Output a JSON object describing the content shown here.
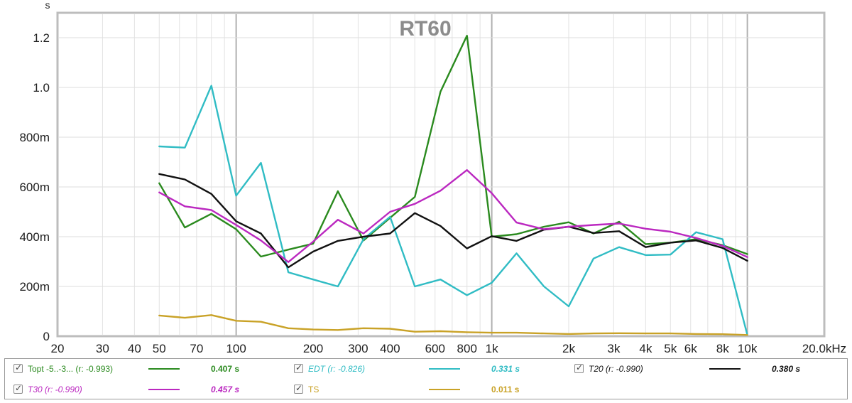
{
  "chart_data": {
    "type": "line",
    "title": "RT60",
    "y_unit": "s",
    "x_scale": "log",
    "xlim": [
      20,
      20000
    ],
    "ylim": [
      0,
      1.3
    ],
    "grid": true,
    "x_ticks": [
      {
        "v": 20,
        "label": "20",
        "major": false
      },
      {
        "v": 30,
        "label": "30",
        "major": false
      },
      {
        "v": 40,
        "label": "40",
        "major": false
      },
      {
        "v": 50,
        "label": "50",
        "major": false
      },
      {
        "v": 60,
        "label": "",
        "major": false
      },
      {
        "v": 70,
        "label": "70",
        "major": false
      },
      {
        "v": 80,
        "label": "",
        "major": false
      },
      {
        "v": 90,
        "label": "",
        "major": false
      },
      {
        "v": 100,
        "label": "100",
        "major": true
      },
      {
        "v": 200,
        "label": "200",
        "major": false
      },
      {
        "v": 300,
        "label": "300",
        "major": false
      },
      {
        "v": 400,
        "label": "400",
        "major": false
      },
      {
        "v": 500,
        "label": "",
        "major": false
      },
      {
        "v": 600,
        "label": "600",
        "major": false
      },
      {
        "v": 700,
        "label": "",
        "major": false
      },
      {
        "v": 800,
        "label": "800",
        "major": false
      },
      {
        "v": 900,
        "label": "",
        "major": false
      },
      {
        "v": 1000,
        "label": "1k",
        "major": true
      },
      {
        "v": 2000,
        "label": "2k",
        "major": false
      },
      {
        "v": 3000,
        "label": "3k",
        "major": false
      },
      {
        "v": 4000,
        "label": "4k",
        "major": false
      },
      {
        "v": 5000,
        "label": "5k",
        "major": false
      },
      {
        "v": 6000,
        "label": "6k",
        "major": false
      },
      {
        "v": 7000,
        "label": "",
        "major": false
      },
      {
        "v": 8000,
        "label": "8k",
        "major": false
      },
      {
        "v": 9000,
        "label": "",
        "major": false
      },
      {
        "v": 10000,
        "label": "10k",
        "major": true
      },
      {
        "v": 20000,
        "label": "20.0kHz",
        "major": false
      }
    ],
    "y_ticks": [
      {
        "v": 0,
        "label": "0"
      },
      {
        "v": 0.2,
        "label": "200m"
      },
      {
        "v": 0.4,
        "label": "400m"
      },
      {
        "v": 0.6,
        "label": "600m"
      },
      {
        "v": 0.8,
        "label": "800m"
      },
      {
        "v": 1.0,
        "label": "1.0"
      },
      {
        "v": 1.2,
        "label": "1.2"
      }
    ],
    "x": [
      50,
      63,
      80,
      100,
      125,
      160,
      200,
      250,
      315,
      400,
      500,
      630,
      800,
      1000,
      1250,
      1600,
      2000,
      2500,
      3150,
      4000,
      5000,
      6300,
      8000,
      10000
    ],
    "series": [
      {
        "name": "Topt -5..-3... (r: -0.993)",
        "color": "#2a8a1e",
        "values": [
          0.615,
          0.437,
          0.492,
          0.43,
          0.32,
          0.348,
          0.372,
          0.583,
          0.385,
          0.476,
          0.56,
          0.983,
          1.208,
          0.4,
          0.41,
          0.44,
          0.458,
          0.413,
          0.46,
          0.37,
          0.376,
          0.39,
          0.366,
          0.33
        ]
      },
      {
        "name": "EDT (r: -0.826)",
        "color": "#30bcc4",
        "values": [
          0.763,
          0.758,
          1.007,
          0.565,
          0.697,
          0.257,
          0.228,
          0.2,
          0.39,
          0.48,
          0.2,
          0.228,
          0.165,
          0.215,
          0.333,
          0.2,
          0.12,
          0.312,
          0.358,
          0.326,
          0.328,
          0.418,
          0.39,
          0.005
        ]
      },
      {
        "name": "T20 (r: -0.990)",
        "color": "#111111",
        "values": [
          0.652,
          0.63,
          0.572,
          0.462,
          0.413,
          0.277,
          0.34,
          0.383,
          0.4,
          0.413,
          0.495,
          0.443,
          0.353,
          0.402,
          0.383,
          0.428,
          0.44,
          0.415,
          0.422,
          0.358,
          0.376,
          0.385,
          0.355,
          0.303
        ]
      },
      {
        "name": "T30 (r: -0.990)",
        "color": "#bb28c0",
        "values": [
          0.578,
          0.522,
          0.507,
          0.447,
          0.385,
          0.298,
          0.38,
          0.468,
          0.413,
          0.5,
          0.532,
          0.585,
          0.668,
          0.575,
          0.457,
          0.43,
          0.44,
          0.447,
          0.453,
          0.432,
          0.42,
          0.395,
          0.363,
          0.318
        ]
      },
      {
        "name": "TS",
        "color": "#c9a227",
        "values": [
          0.083,
          0.074,
          0.085,
          0.062,
          0.058,
          0.032,
          0.027,
          0.025,
          0.032,
          0.03,
          0.018,
          0.02,
          0.016,
          0.014,
          0.014,
          0.011,
          0.009,
          0.011,
          0.012,
          0.011,
          0.011,
          0.009,
          0.008,
          0.005
        ]
      }
    ]
  },
  "legend": {
    "rows": [
      [
        {
          "name": "Topt -5..-3... (r: -0.993)",
          "value": "0.407 s",
          "color": "#2a8a1e",
          "italic": false
        },
        {
          "name": "EDT (r: -0.826)",
          "value": "0.331 s",
          "color": "#30bcc4",
          "italic": true
        },
        {
          "name": "T20 (r: -0.990)",
          "value": "0.380 s",
          "color": "#111111",
          "italic": true
        }
      ],
      [
        {
          "name": "T30 (r: -0.990)",
          "value": "0.457 s",
          "color": "#bb28c0",
          "italic": true
        },
        {
          "name": "TS",
          "value": "0.011 s",
          "color": "#c9a227",
          "italic": false
        }
      ]
    ]
  }
}
